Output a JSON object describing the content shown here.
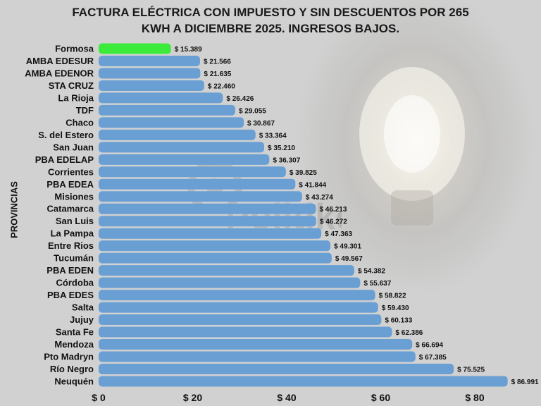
{
  "chart_data": {
    "type": "bar",
    "orientation": "horizontal",
    "title": "FACTURA ELÉCTRICA CON IMPUESTO Y SIN DESCUENTOS POR 265 KWH A DICIEMBRE 2025. INGRESOS BAJOS.",
    "title_lines": [
      "FACTURA ELÉCTRICA CON IMPUESTO Y SIN DESCUENTOS POR 265",
      "KWH A DICIEMBRE 2025. INGRESOS BAJOS."
    ],
    "ylabel": "PROVINCIAS",
    "xlabel": "",
    "xlim": [
      0,
      87
    ],
    "x_ticks": [
      0,
      20,
      40,
      60,
      80
    ],
    "x_tick_labels": [
      "$ 0",
      "$ 20",
      "$ 40",
      "$ 60",
      "$ 80"
    ],
    "grid": false,
    "categories": [
      "Formosa",
      "AMBA EDESUR",
      "AMBA EDENOR",
      "STA CRUZ",
      "La Rioja",
      "TDF",
      "Chaco",
      "S. del Estero",
      "San Juan",
      "PBA EDELAP",
      "Corrientes",
      "PBA EDEA",
      "Misiones",
      "Catamarca",
      "San Luis",
      "La Pampa",
      "Entre Rios",
      "Tucumán",
      "PBA EDEN",
      "Córdoba",
      "PBA EDES",
      "Salta",
      "Jujuy",
      "Santa Fe",
      "Mendoza",
      "Pto Madryn",
      "Río Negro",
      "Neuquén"
    ],
    "values": [
      15.389,
      21.566,
      21.635,
      22.46,
      26.426,
      29.055,
      30.867,
      33.364,
      35.21,
      36.307,
      39.825,
      41.844,
      43.274,
      46.213,
      46.272,
      47.363,
      49.301,
      49.567,
      54.382,
      55.637,
      58.822,
      59.43,
      60.133,
      62.386,
      66.694,
      67.385,
      75.525,
      86.991
    ],
    "data_labels": [
      "$ 15.389",
      "$ 21.566",
      "$ 21.635",
      "$ 22.460",
      "$ 26.426",
      "$ 29.055",
      "$ 30.867",
      "$ 33.364",
      "$ 35.210",
      "$ 36.307",
      "$ 39.825",
      "$ 41.844",
      "$ 43.274",
      "$ 46.213",
      "$ 46.272",
      "$ 47.363",
      "$ 49.301",
      "$ 49.567",
      "$ 54.382",
      "$ 55.637",
      "$ 58.822",
      "$ 59.430",
      "$ 60.133",
      "$ 62.386",
      "$ 66.694",
      "$ 67.385",
      "$ 75.525",
      "$ 86.991"
    ],
    "highlight_category": "Formosa",
    "colors": {
      "bar": "#6a9fd4",
      "highlight": "#3cea3c",
      "text": "#111111"
    }
  },
  "watermark": "Politike"
}
